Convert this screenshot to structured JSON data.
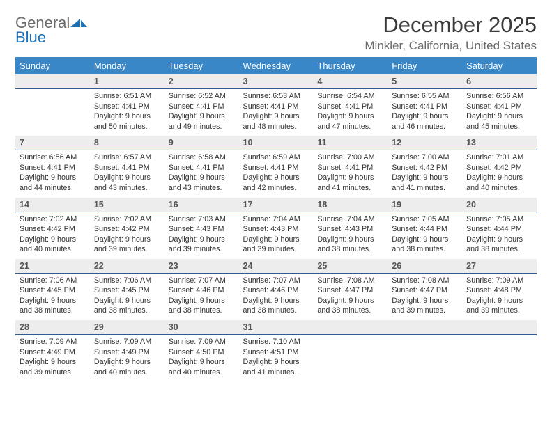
{
  "logo": {
    "word1": "General",
    "word2": "Blue"
  },
  "title": "December 2025",
  "location": "Minkler, California, United States",
  "header_bg": "#3a87c8",
  "header_text": "#ffffff",
  "daynum_bg": "#ededed",
  "daynum_border": "#2c5c8e",
  "day_names": [
    "Sunday",
    "Monday",
    "Tuesday",
    "Wednesday",
    "Thursday",
    "Friday",
    "Saturday"
  ],
  "weeks": [
    [
      null,
      {
        "n": "1",
        "sunrise": "6:51 AM",
        "sunset": "4:41 PM",
        "daylight": "9 hours and 50 minutes."
      },
      {
        "n": "2",
        "sunrise": "6:52 AM",
        "sunset": "4:41 PM",
        "daylight": "9 hours and 49 minutes."
      },
      {
        "n": "3",
        "sunrise": "6:53 AM",
        "sunset": "4:41 PM",
        "daylight": "9 hours and 48 minutes."
      },
      {
        "n": "4",
        "sunrise": "6:54 AM",
        "sunset": "4:41 PM",
        "daylight": "9 hours and 47 minutes."
      },
      {
        "n": "5",
        "sunrise": "6:55 AM",
        "sunset": "4:41 PM",
        "daylight": "9 hours and 46 minutes."
      },
      {
        "n": "6",
        "sunrise": "6:56 AM",
        "sunset": "4:41 PM",
        "daylight": "9 hours and 45 minutes."
      }
    ],
    [
      {
        "n": "7",
        "sunrise": "6:56 AM",
        "sunset": "4:41 PM",
        "daylight": "9 hours and 44 minutes."
      },
      {
        "n": "8",
        "sunrise": "6:57 AM",
        "sunset": "4:41 PM",
        "daylight": "9 hours and 43 minutes."
      },
      {
        "n": "9",
        "sunrise": "6:58 AM",
        "sunset": "4:41 PM",
        "daylight": "9 hours and 43 minutes."
      },
      {
        "n": "10",
        "sunrise": "6:59 AM",
        "sunset": "4:41 PM",
        "daylight": "9 hours and 42 minutes."
      },
      {
        "n": "11",
        "sunrise": "7:00 AM",
        "sunset": "4:41 PM",
        "daylight": "9 hours and 41 minutes."
      },
      {
        "n": "12",
        "sunrise": "7:00 AM",
        "sunset": "4:42 PM",
        "daylight": "9 hours and 41 minutes."
      },
      {
        "n": "13",
        "sunrise": "7:01 AM",
        "sunset": "4:42 PM",
        "daylight": "9 hours and 40 minutes."
      }
    ],
    [
      {
        "n": "14",
        "sunrise": "7:02 AM",
        "sunset": "4:42 PM",
        "daylight": "9 hours and 40 minutes."
      },
      {
        "n": "15",
        "sunrise": "7:02 AM",
        "sunset": "4:42 PM",
        "daylight": "9 hours and 39 minutes."
      },
      {
        "n": "16",
        "sunrise": "7:03 AM",
        "sunset": "4:43 PM",
        "daylight": "9 hours and 39 minutes."
      },
      {
        "n": "17",
        "sunrise": "7:04 AM",
        "sunset": "4:43 PM",
        "daylight": "9 hours and 39 minutes."
      },
      {
        "n": "18",
        "sunrise": "7:04 AM",
        "sunset": "4:43 PM",
        "daylight": "9 hours and 38 minutes."
      },
      {
        "n": "19",
        "sunrise": "7:05 AM",
        "sunset": "4:44 PM",
        "daylight": "9 hours and 38 minutes."
      },
      {
        "n": "20",
        "sunrise": "7:05 AM",
        "sunset": "4:44 PM",
        "daylight": "9 hours and 38 minutes."
      }
    ],
    [
      {
        "n": "21",
        "sunrise": "7:06 AM",
        "sunset": "4:45 PM",
        "daylight": "9 hours and 38 minutes."
      },
      {
        "n": "22",
        "sunrise": "7:06 AM",
        "sunset": "4:45 PM",
        "daylight": "9 hours and 38 minutes."
      },
      {
        "n": "23",
        "sunrise": "7:07 AM",
        "sunset": "4:46 PM",
        "daylight": "9 hours and 38 minutes."
      },
      {
        "n": "24",
        "sunrise": "7:07 AM",
        "sunset": "4:46 PM",
        "daylight": "9 hours and 38 minutes."
      },
      {
        "n": "25",
        "sunrise": "7:08 AM",
        "sunset": "4:47 PM",
        "daylight": "9 hours and 38 minutes."
      },
      {
        "n": "26",
        "sunrise": "7:08 AM",
        "sunset": "4:47 PM",
        "daylight": "9 hours and 39 minutes."
      },
      {
        "n": "27",
        "sunrise": "7:09 AM",
        "sunset": "4:48 PM",
        "daylight": "9 hours and 39 minutes."
      }
    ],
    [
      {
        "n": "28",
        "sunrise": "7:09 AM",
        "sunset": "4:49 PM",
        "daylight": "9 hours and 39 minutes."
      },
      {
        "n": "29",
        "sunrise": "7:09 AM",
        "sunset": "4:49 PM",
        "daylight": "9 hours and 40 minutes."
      },
      {
        "n": "30",
        "sunrise": "7:09 AM",
        "sunset": "4:50 PM",
        "daylight": "9 hours and 40 minutes."
      },
      {
        "n": "31",
        "sunrise": "7:10 AM",
        "sunset": "4:51 PM",
        "daylight": "9 hours and 41 minutes."
      },
      null,
      null,
      null
    ]
  ],
  "labels": {
    "sunrise": "Sunrise: ",
    "sunset": "Sunset: ",
    "daylight": "Daylight: "
  }
}
